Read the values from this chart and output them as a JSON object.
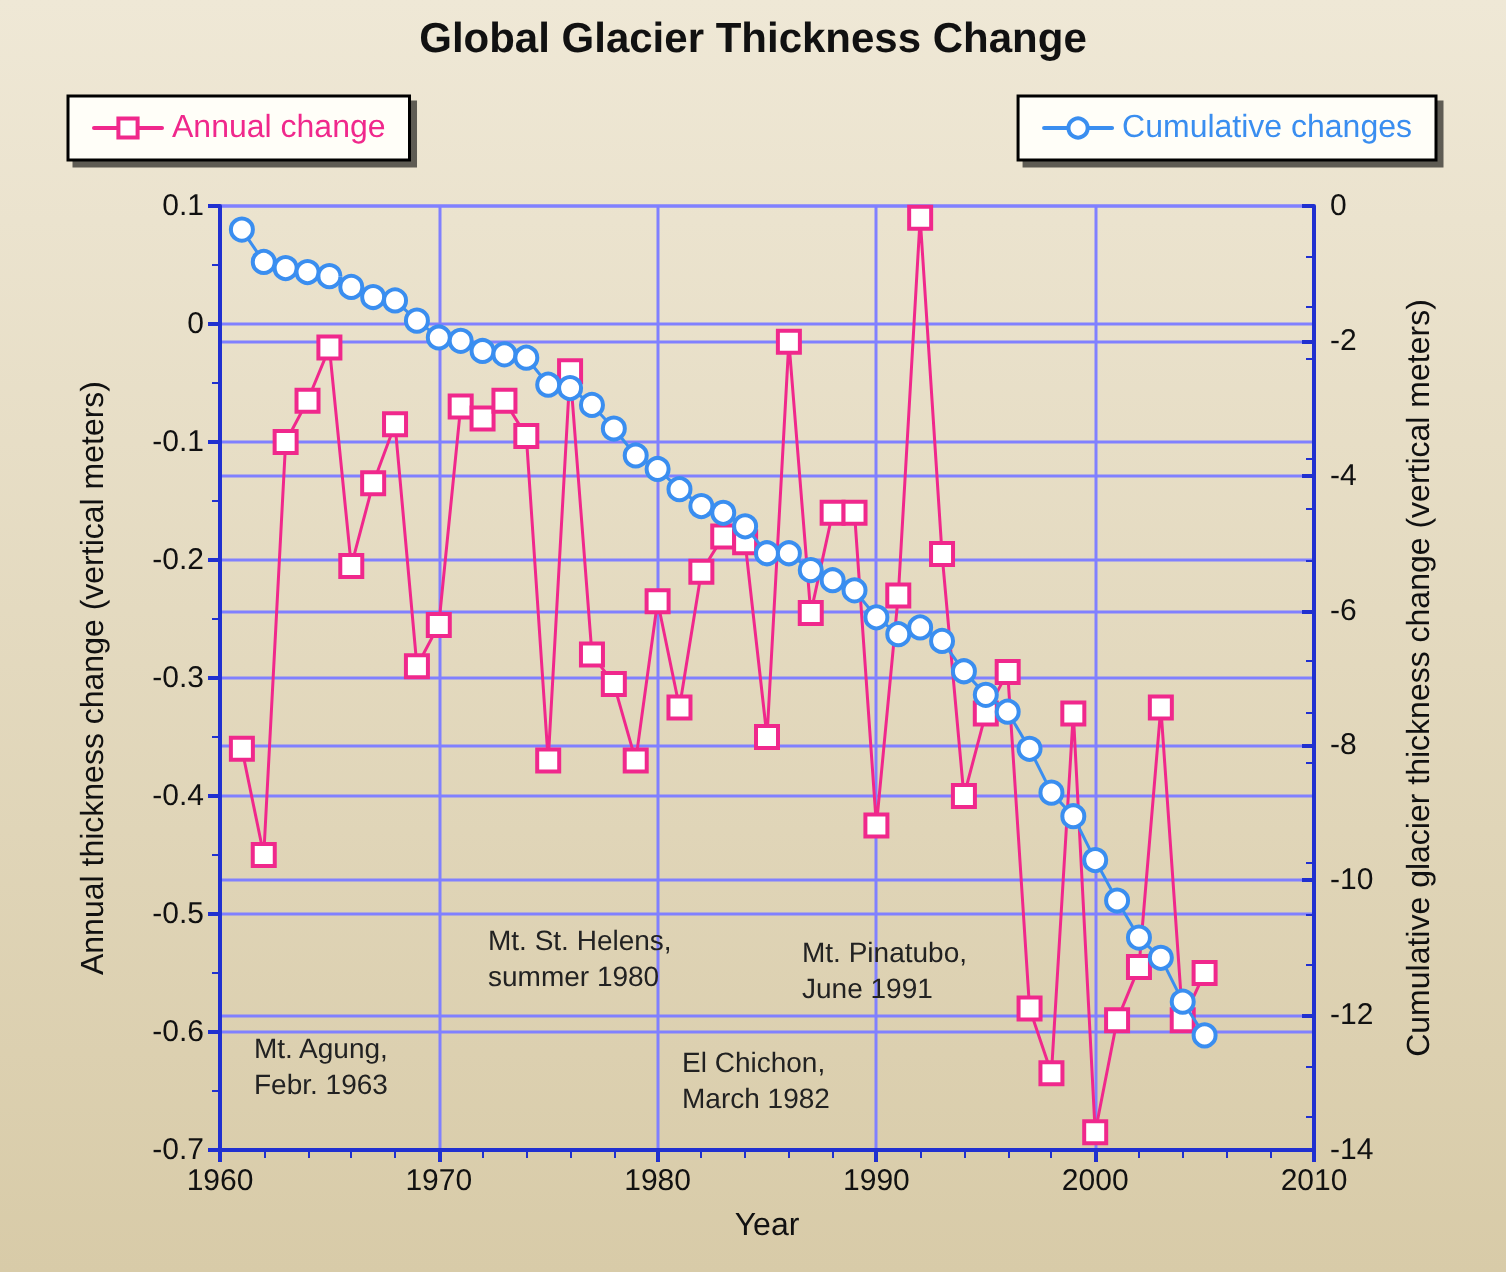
{
  "chart_data": {
    "type": "line",
    "title": "Global Glacier Thickness Change",
    "xlabel": "Year",
    "ylabel": "Annual thickness change (vertical meters)",
    "y2label": "Cumulative glacier thickness change (vertical meters)",
    "x": [
      1961,
      1962,
      1963,
      1964,
      1965,
      1966,
      1967,
      1968,
      1969,
      1970,
      1971,
      1972,
      1973,
      1974,
      1975,
      1976,
      1977,
      1978,
      1979,
      1980,
      1981,
      1982,
      1983,
      1984,
      1985,
      1986,
      1987,
      1988,
      1989,
      1990,
      1991,
      1992,
      1993,
      1994,
      1995,
      1996,
      1997,
      1998,
      1999,
      2000,
      2001,
      2002,
      2003,
      2004,
      2005
    ],
    "series": [
      {
        "name": "Annual change",
        "color": "#f0288c",
        "marker": "square",
        "values": [
          -0.36,
          -0.45,
          -0.1,
          -0.065,
          -0.02,
          -0.205,
          -0.135,
          -0.085,
          -0.29,
          -0.255,
          -0.07,
          -0.08,
          -0.065,
          -0.095,
          -0.37,
          -0.04,
          -0.28,
          -0.305,
          -0.37,
          -0.235,
          -0.325,
          -0.21,
          -0.18,
          -0.185,
          -0.35,
          -0.015,
          -0.245,
          -0.16,
          -0.16,
          -0.425,
          -0.23,
          0.09,
          -0.195,
          -0.4,
          -0.33,
          -0.295,
          -0.58,
          -0.635,
          -0.33,
          -0.685,
          -0.59,
          -0.545,
          -0.325,
          -0.59,
          -0.55
        ]
      },
      {
        "name": "Cumulative changes",
        "color": "#3a8ef0",
        "marker": "circle",
        "axis": "y2",
        "values": [
          -0.35,
          -0.83,
          -0.92,
          -0.98,
          -1.04,
          -1.2,
          -1.35,
          -1.4,
          -1.7,
          -1.95,
          -2.0,
          -2.15,
          -2.2,
          -2.25,
          -2.65,
          -2.7,
          -2.95,
          -3.3,
          -3.7,
          -3.9,
          -4.2,
          -4.45,
          -4.55,
          -4.75,
          -5.15,
          -5.15,
          -5.4,
          -5.55,
          -5.7,
          -6.1,
          -6.35,
          -6.25,
          -6.45,
          -6.9,
          -7.25,
          -7.5,
          -8.05,
          -8.7,
          -9.05,
          -9.7,
          -10.3,
          -10.85,
          -11.15,
          -11.8,
          -12.3
        ]
      }
    ],
    "xlim": [
      1960,
      2010
    ],
    "xticks": [
      1960,
      1970,
      1980,
      1990,
      2000,
      2010
    ],
    "ylim": [
      -0.7,
      0.1
    ],
    "yticks": [
      -0.7,
      -0.6,
      -0.5,
      -0.4,
      -0.3,
      -0.2,
      -0.1,
      0,
      0.1
    ],
    "y2lim": [
      -14,
      0
    ],
    "y2ticks": [
      -14,
      -12,
      -10,
      -8,
      -6,
      -4,
      -2,
      0
    ],
    "annotations": [
      "Mt. Agung,\nFebr. 1963",
      "Mt. St. Helens,\nsummer 1980",
      "El Chichon,\nMarch 1982",
      "Mt. Pinatubo,\nJune 1991"
    ],
    "grid": true,
    "legend": "top",
    "line_style": "solid"
  }
}
